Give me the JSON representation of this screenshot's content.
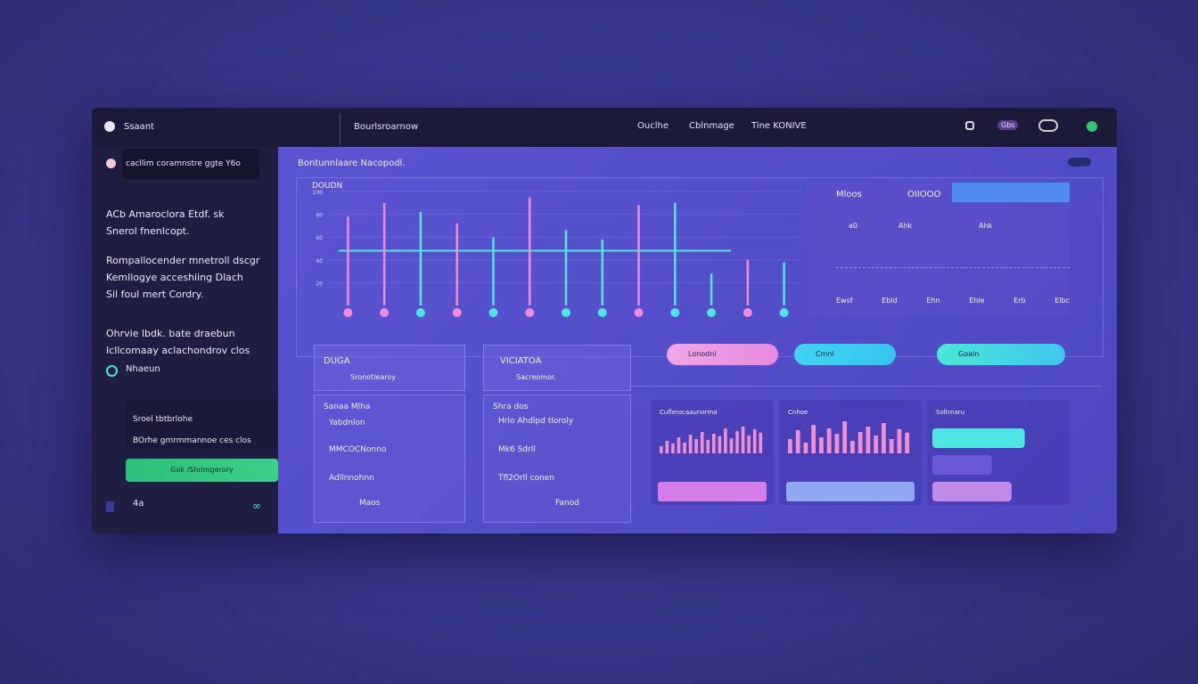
{
  "topbar": {
    "brand": "Ssaant",
    "section": "Bourlsroarnow",
    "nav": [
      "Ouclhe",
      "Cblnmage",
      "Tine KONIVE"
    ],
    "badge": "Gbs"
  },
  "sidebar": {
    "search": "cacllim coramnstre ggte Y6o",
    "paragraphs": [
      [
        "ACb Amaroclora Etdf. sk",
        "Snerol fnenlcopt."
      ],
      [
        "Rompallocender mnetroll dscgr",
        "Kemllogye acceshiing Dlach",
        "Sil foul mert Cordry."
      ],
      [
        "Ohrvie lbdk. bate draebun",
        "Icllcomaay aclachondrov clos"
      ]
    ],
    "link": "Nhaeun",
    "box": [
      "Sroel tbtbrlohe",
      "BOrhe gmrmmannoe ces clos"
    ],
    "button": "Gok /Shrimgerory",
    "footer": "4a"
  },
  "main": {
    "title": "Bontunnlaare Nacopodl.",
    "chart_data": {
      "type": "spike",
      "title": "DOUDN",
      "ylim": [
        0,
        100
      ],
      "yticks": [
        20,
        40,
        60,
        80,
        100
      ],
      "series": [
        {
          "name": "Pink",
          "color": "#f28bd8",
          "values": [
            78,
            90,
            null,
            72,
            null,
            95,
            null,
            null,
            88,
            null,
            null,
            40,
            null
          ]
        },
        {
          "name": "Cyan",
          "color": "#4ee6e0",
          "values": [
            null,
            null,
            82,
            null,
            60,
            null,
            66,
            58,
            null,
            90,
            28,
            null,
            38
          ]
        }
      ],
      "threshold": 48
    },
    "stats": {
      "title": "Mloos",
      "value": "OIIOOO",
      "labels": [
        "a0",
        "Ahk",
        "Ahk"
      ],
      "legend": [
        "Ewsf",
        "Ebld",
        "Ehn",
        "Ehle",
        "Erb",
        "Elbc"
      ]
    },
    "cards": [
      {
        "title": "DUGA",
        "subtitle": "Sronotlearoy",
        "rows": [
          "Sanaa Mlha",
          "Yabdnlon",
          "MMCOCNonno",
          "Adllnnohnn",
          "Maos"
        ]
      },
      {
        "title": "VICIATOA",
        "subtitle": "Sacreomor.",
        "rows": [
          "Shra dos",
          "Hrlo Ahdlpd tloroly",
          "Mk6 Sdrll",
          "Tfl2Orll conen",
          "Fanod"
        ]
      }
    ],
    "buttons": [
      "Lonodnl",
      "Cmnl",
      "Goaln"
    ],
    "panels": [
      {
        "title": "Cuflerocaaunorma",
        "color": "#f08fd0",
        "values": [
          20,
          35,
          28,
          45,
          30,
          52,
          40,
          60,
          38,
          55,
          48,
          70,
          42,
          62,
          75,
          50,
          68,
          58
        ]
      },
      {
        "title": "Cnhoe",
        "color": "#f08fd0",
        "values": [
          40,
          65,
          30,
          80,
          45,
          70,
          55,
          90,
          35,
          60,
          75,
          50,
          85,
          40,
          68,
          58
        ]
      },
      {
        "title": "Soltrnaru",
        "color": "#4ee6e0",
        "values": [
          70,
          45,
          60
        ]
      }
    ]
  }
}
